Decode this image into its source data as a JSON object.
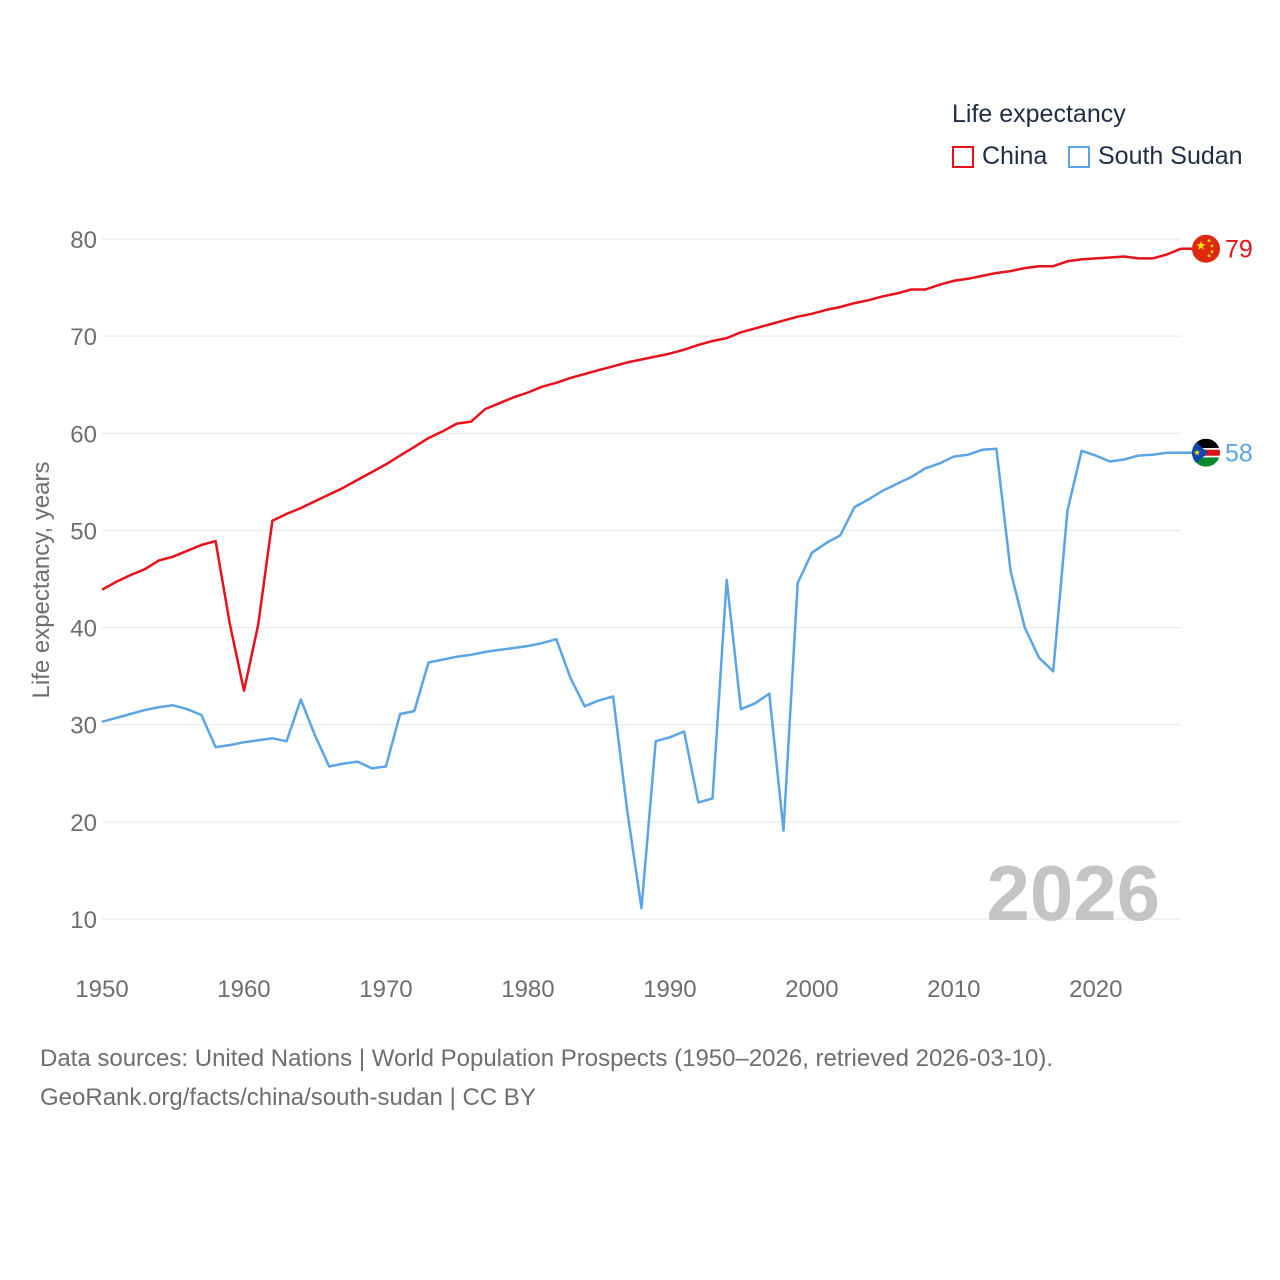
{
  "legend": {
    "title": "Life expectancy",
    "items": [
      {
        "label": "China",
        "color": "#e8101a"
      },
      {
        "label": "South Sudan",
        "color": "#5ba4e5"
      }
    ]
  },
  "year_badge": "2026",
  "footer": {
    "line1": "Data sources: United Nations | World Population Prospects (1950–2026, retrieved 2026-03-10).",
    "line2": "GeoRank.org/facts/china/south-sudan | CC BY"
  },
  "chart_data": {
    "type": "line",
    "title": "Life expectancy",
    "xlabel": "",
    "ylabel": "Life expectancy, years",
    "xlim": [
      1950,
      2026
    ],
    "ylim": [
      10,
      80
    ],
    "x_ticks": [
      1950,
      1960,
      1970,
      1980,
      1990,
      2000,
      2010,
      2020
    ],
    "y_ticks": [
      10,
      20,
      30,
      40,
      50,
      60,
      70,
      80
    ],
    "grid": true,
    "series": [
      {
        "name": "China",
        "color": "#e8101a",
        "end_label": "79",
        "x": [
          1950,
          1951,
          1952,
          1953,
          1954,
          1955,
          1956,
          1957,
          1958,
          1959,
          1960,
          1961,
          1962,
          1963,
          1964,
          1965,
          1966,
          1967,
          1968,
          1969,
          1970,
          1971,
          1972,
          1973,
          1974,
          1975,
          1976,
          1977,
          1978,
          1979,
          1980,
          1981,
          1982,
          1983,
          1984,
          1985,
          1986,
          1987,
          1988,
          1989,
          1990,
          1991,
          1992,
          1993,
          1994,
          1995,
          1996,
          1997,
          1998,
          1999,
          2000,
          2001,
          2002,
          2003,
          2004,
          2005,
          2006,
          2007,
          2008,
          2009,
          2010,
          2011,
          2012,
          2013,
          2014,
          2015,
          2016,
          2017,
          2018,
          2019,
          2020,
          2021,
          2022,
          2023,
          2024,
          2025,
          2026
        ],
        "values": [
          43.9,
          44.7,
          45.4,
          46.0,
          46.9,
          47.3,
          47.9,
          48.5,
          48.9,
          40.4,
          33.5,
          40.3,
          51.0,
          51.7,
          52.3,
          53.0,
          53.7,
          54.4,
          55.2,
          56.0,
          56.8,
          57.7,
          58.6,
          59.5,
          60.2,
          61.0,
          61.2,
          62.5,
          63.1,
          63.7,
          64.2,
          64.8,
          65.2,
          65.7,
          66.1,
          66.5,
          66.9,
          67.3,
          67.6,
          67.9,
          68.2,
          68.6,
          69.1,
          69.5,
          69.8,
          70.4,
          70.8,
          71.2,
          71.6,
          72.0,
          72.3,
          72.7,
          73.0,
          73.4,
          73.7,
          74.1,
          74.4,
          74.8,
          74.8,
          75.3,
          75.7,
          75.9,
          76.2,
          76.5,
          76.7,
          77.0,
          77.2,
          77.2,
          77.7,
          77.9,
          78.0,
          78.1,
          78.2,
          78.0,
          78.0,
          78.4,
          79.0
        ]
      },
      {
        "name": "South Sudan",
        "color": "#5ba4e5",
        "end_label": "58",
        "x": [
          1950,
          1951,
          1952,
          1953,
          1954,
          1955,
          1956,
          1957,
          1958,
          1959,
          1960,
          1961,
          1962,
          1963,
          1964,
          1965,
          1966,
          1967,
          1968,
          1969,
          1970,
          1971,
          1972,
          1973,
          1974,
          1975,
          1976,
          1977,
          1978,
          1979,
          1980,
          1981,
          1982,
          1983,
          1984,
          1985,
          1986,
          1987,
          1988,
          1989,
          1990,
          1991,
          1992,
          1993,
          1994,
          1995,
          1996,
          1997,
          1998,
          1999,
          2000,
          2001,
          2002,
          2003,
          2004,
          2005,
          2006,
          2007,
          2008,
          2009,
          2010,
          2011,
          2012,
          2013,
          2014,
          2015,
          2016,
          2017,
          2018,
          2019,
          2020,
          2021,
          2022,
          2023,
          2024,
          2025,
          2026
        ],
        "values": [
          30.3,
          30.7,
          31.1,
          31.5,
          31.8,
          32.0,
          31.6,
          31.0,
          27.7,
          27.9,
          28.2,
          28.4,
          28.6,
          28.3,
          32.6,
          28.9,
          25.7,
          26.0,
          26.2,
          25.5,
          25.7,
          31.1,
          31.4,
          36.4,
          36.7,
          37.0,
          37.2,
          37.5,
          37.7,
          37.9,
          38.1,
          38.4,
          38.8,
          34.8,
          31.9,
          32.5,
          32.9,
          21.1,
          11.1,
          28.3,
          28.7,
          29.3,
          22.0,
          22.4,
          44.9,
          31.6,
          32.2,
          33.2,
          19.1,
          44.6,
          47.7,
          48.7,
          49.5,
          52.4,
          53.2,
          54.1,
          54.8,
          55.5,
          56.4,
          56.9,
          57.6,
          57.8,
          58.3,
          58.4,
          45.8,
          40.0,
          36.9,
          35.5,
          52.0,
          58.2,
          57.7,
          57.1,
          57.3,
          57.7,
          57.8,
          58.0,
          58.0
        ]
      }
    ]
  }
}
